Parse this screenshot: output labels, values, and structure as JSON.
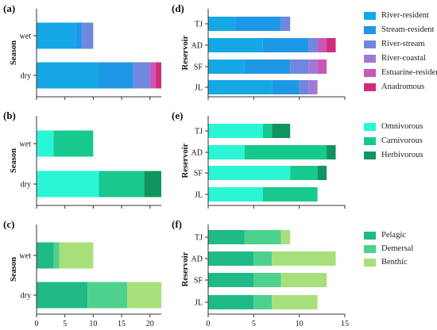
{
  "colors": {
    "migration": [
      "#16a8e6",
      "#1e97e6",
      "#6f87df",
      "#a079d4",
      "#c857b7",
      "#d22c79"
    ],
    "feeding": [
      "#2af5d5",
      "#17c98e",
      "#11945f"
    ],
    "habitat": [
      "#1fba86",
      "#4ed18c",
      "#a7e07b"
    ],
    "axis": "#333333"
  },
  "legends": {
    "migration": [
      "River-resident",
      "Stream-resident",
      "River-stream",
      "River-coastal",
      "Estuarine-resident",
      "Anadromous"
    ],
    "feeding": [
      "Omnivorous",
      "Carnivorous",
      "Herbivorous"
    ],
    "habitat": [
      "Pelagic",
      "Demersal",
      "Benthic"
    ]
  },
  "chart_data": [
    {
      "panel": "(a)",
      "type": "bar",
      "orientation": "horizontal",
      "stacked": true,
      "categories": [
        "wet",
        "dry"
      ],
      "ylabel": "Season",
      "xlim": [
        0,
        22
      ],
      "series": [
        {
          "name": "River-resident",
          "values": [
            7,
            11
          ]
        },
        {
          "name": "Stream-resident",
          "values": [
            1,
            6
          ]
        },
        {
          "name": "River-stream",
          "values": [
            2,
            3
          ]
        },
        {
          "name": "River-coastal",
          "values": [
            0,
            0
          ]
        },
        {
          "name": "Estuarine-resident",
          "values": [
            0,
            1
          ]
        },
        {
          "name": "Anadromous",
          "values": [
            0,
            1
          ]
        }
      ]
    },
    {
      "panel": "(b)",
      "type": "bar",
      "orientation": "horizontal",
      "stacked": true,
      "categories": [
        "wet",
        "dry"
      ],
      "ylabel": "Season",
      "xlim": [
        0,
        22
      ],
      "series": [
        {
          "name": "Omnivorous",
          "values": [
            3,
            11
          ]
        },
        {
          "name": "Carnivorous",
          "values": [
            7,
            8
          ]
        },
        {
          "name": "Herbivorous",
          "values": [
            0,
            3
          ]
        }
      ]
    },
    {
      "panel": "(c)",
      "type": "bar",
      "orientation": "horizontal",
      "stacked": true,
      "categories": [
        "wet",
        "dry"
      ],
      "ylabel": "Season",
      "xlim": [
        0,
        22
      ],
      "xticks": [
        "0",
        "5",
        "10",
        "15",
        "20"
      ],
      "series": [
        {
          "name": "Pelagic",
          "values": [
            3,
            9
          ]
        },
        {
          "name": "Demersal",
          "values": [
            1,
            7
          ]
        },
        {
          "name": "Benthic",
          "values": [
            6,
            6
          ]
        }
      ]
    },
    {
      "panel": "(d)",
      "type": "bar",
      "orientation": "horizontal",
      "stacked": true,
      "categories": [
        "TJ",
        "AD",
        "SF",
        "JL"
      ],
      "ylabel": "Reservoir",
      "xlim": [
        0,
        15
      ],
      "series": [
        {
          "name": "River-resident",
          "values": [
            3,
            6,
            4,
            7
          ]
        },
        {
          "name": "Stream-resident",
          "values": [
            5,
            5,
            5,
            3
          ]
        },
        {
          "name": "River-stream",
          "values": [
            1,
            1,
            2,
            1
          ]
        },
        {
          "name": "River-coastal",
          "values": [
            0,
            0,
            1,
            1
          ]
        },
        {
          "name": "Estuarine-resident",
          "values": [
            0,
            1,
            1,
            0
          ]
        },
        {
          "name": "Anadromous",
          "values": [
            0,
            1,
            0,
            0
          ]
        }
      ]
    },
    {
      "panel": "(e)",
      "type": "bar",
      "orientation": "horizontal",
      "stacked": true,
      "categories": [
        "TJ",
        "AD",
        "SF",
        "JL"
      ],
      "ylabel": "Reservoir",
      "xlim": [
        0,
        15
      ],
      "series": [
        {
          "name": "Omnivorous",
          "values": [
            6,
            4,
            9,
            6
          ]
        },
        {
          "name": "Carnivorous",
          "values": [
            1,
            9,
            3,
            6
          ]
        },
        {
          "name": "Herbivorous",
          "values": [
            2,
            1,
            1,
            0
          ]
        }
      ]
    },
    {
      "panel": "(f)",
      "type": "bar",
      "orientation": "horizontal",
      "stacked": true,
      "categories": [
        "TJ",
        "AD",
        "SF",
        "JL"
      ],
      "ylabel": "Reservoir",
      "xlim": [
        0,
        15
      ],
      "xticks": [
        "0",
        "5",
        "10",
        "15"
      ],
      "series": [
        {
          "name": "Pelagic",
          "values": [
            4,
            5,
            5,
            5
          ]
        },
        {
          "name": "Demersal",
          "values": [
            4,
            2,
            3,
            2
          ]
        },
        {
          "name": "Benthic",
          "values": [
            1,
            7,
            5,
            5
          ]
        }
      ]
    }
  ]
}
